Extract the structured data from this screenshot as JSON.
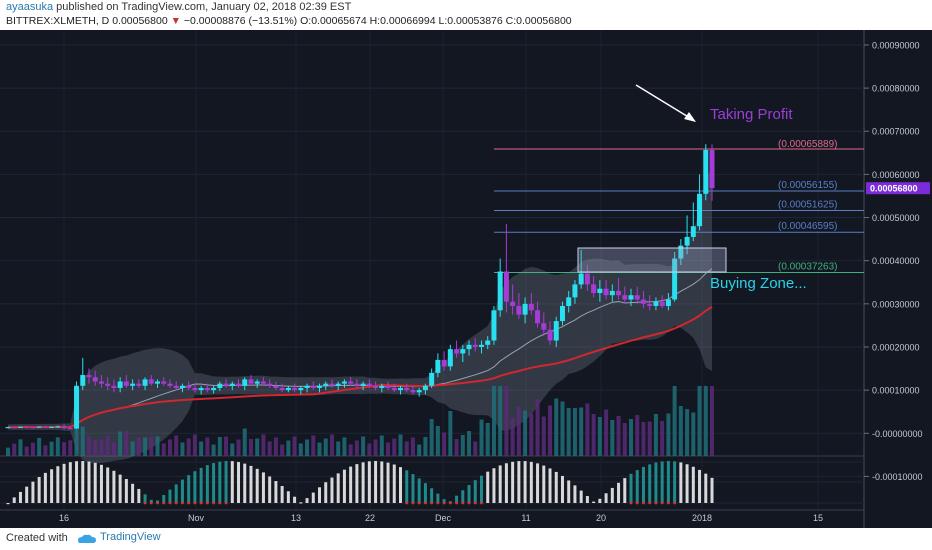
{
  "header": {
    "author": "ayaasuka",
    "published": "published on TradingView.com, January 02, 2018 02:39 EST",
    "symbol": "BITTREX:XLMETH, D",
    "last": "0.00056800",
    "change": "−0.00008876 (−13.51%)",
    "open": "O:0.00065674",
    "high": "H:0.00066994",
    "low": "L:0.00053876",
    "close": "C:0.00056800"
  },
  "footer": {
    "created_with": "Created with",
    "brand": "TradingView"
  },
  "colors": {
    "background": "#131722",
    "bull": "#28e0f0",
    "bear": "#a73bd8",
    "ma_slow": "#d0282e",
    "fib_line": "#5a7fc4",
    "annotation": "#9b3fd8",
    "buying_zone_text": "#27d4e8"
  },
  "chart_data": {
    "type": "candlestick",
    "price_axis_labels": [
      "0.00090000",
      "0.00080000",
      "0.00070000",
      "0.00060000",
      "0.00050000",
      "0.00040000",
      "0.00030000",
      "0.00020000",
      "0.00010000",
      "-0.00000000",
      "-0.00010000"
    ],
    "price_range": [
      -0.00015,
      0.00093
    ],
    "x_labels": [
      "16",
      "Nov",
      "13",
      "22",
      "Dec",
      "11",
      "20",
      "2018",
      "15"
    ],
    "last_price_badge": "0.00056800",
    "fib_levels": [
      {
        "label": "(0.00065889)",
        "value": 0.00065889
      },
      {
        "label": "(0.00056155)",
        "value": 0.00056155
      },
      {
        "label": "(0.00051625)",
        "value": 0.00051625
      },
      {
        "label": "(0.00046595)",
        "value": 0.00046595
      },
      {
        "label": "(0.00037263)",
        "value": 0.00037263
      }
    ],
    "annotations": [
      "Taking Profit",
      "Buying Zone..."
    ],
    "ohlc": [
      [
        1.4e-05,
        1.5e-05,
        1.3e-05,
        1.45e-05
      ],
      [
        1.45e-05,
        1.5e-05,
        1.35e-05,
        1.4e-05
      ],
      [
        1.4e-05,
        1.55e-05,
        1.3e-05,
        1.5e-05
      ],
      [
        1.5e-05,
        1.6e-05,
        1.4e-05,
        1.45e-05
      ],
      [
        1.45e-05,
        1.5e-05,
        1.3e-05,
        1.4e-05
      ],
      [
        1.4e-05,
        1.6e-05,
        1.35e-05,
        1.55e-05
      ],
      [
        1.55e-05,
        1.65e-05,
        1.4e-05,
        1.45e-05
      ],
      [
        1.45e-05,
        1.55e-05,
        1.35e-05,
        1.5e-05
      ],
      [
        1.5e-05,
        1.8e-05,
        1.4e-05,
        1.6e-05
      ],
      [
        1.6e-05,
        2.1e-05,
        9e-06,
        1.2e-05
      ],
      [
        1.2e-05,
        1.7e-05,
        1e-05,
        1.1e-05
      ],
      [
        1.1e-05,
        0.00012,
        1e-05,
        0.00011
      ],
      [
        0.00011,
        0.000175,
        0.0001,
        0.000135
      ],
      [
        0.000135,
        0.00015,
        0.000115,
        0.00013
      ],
      [
        0.00013,
        0.000145,
        0.00011,
        0.00012
      ],
      [
        0.00012,
        0.000135,
        0.000105,
        0.000115
      ],
      [
        0.000115,
        0.00013,
        0.0001,
        0.00011
      ],
      [
        0.00011,
        0.000125,
        9.5e-05,
        0.000105
      ],
      [
        0.000105,
        0.00013,
        9.5e-05,
        0.00012
      ],
      [
        0.00012,
        0.000135,
        0.000105,
        0.00011
      ],
      [
        0.00011,
        0.000125,
        0.0001,
        0.000115
      ],
      [
        0.000115,
        0.000125,
        0.000105,
        0.00011
      ],
      [
        0.00011,
        0.00013,
        0.0001,
        0.000125
      ],
      [
        0.000125,
        0.000135,
        0.00011,
        0.000115
      ],
      [
        0.000115,
        0.000125,
        0.000105,
        0.00012
      ],
      [
        0.00012,
        0.00013,
        0.00011,
        0.000115
      ],
      [
        0.000115,
        0.000125,
        0.000105,
        0.00011
      ],
      [
        0.00011,
        0.00012,
        0.0001,
        0.000105
      ],
      [
        0.000105,
        0.000115,
        9.5e-05,
        0.00011
      ],
      [
        0.00011,
        0.00012,
        0.0001,
        0.000105
      ],
      [
        0.000105,
        0.000115,
        9.5e-05,
        0.0001
      ],
      [
        0.0001,
        0.00011,
        9e-05,
        0.000105
      ],
      [
        0.000105,
        0.000115,
        9.5e-05,
        0.0001
      ],
      [
        0.0001,
        0.00011,
        9.2e-05,
        0.000105
      ],
      [
        0.000105,
        0.00012,
        9.8e-05,
        0.000115
      ],
      [
        0.000115,
        0.000125,
        0.000105,
        0.00011
      ],
      [
        0.00011,
        0.00012,
        0.0001,
        0.000115
      ],
      [
        0.000115,
        0.000125,
        0.000105,
        0.00011
      ],
      [
        0.00011,
        0.00013,
        0.0001,
        0.000125
      ],
      [
        0.000125,
        0.000135,
        0.00011,
        0.000115
      ],
      [
        0.000115,
        0.000125,
        0.000105,
        0.00012
      ],
      [
        0.00012,
        0.00013,
        0.00011,
        0.000115
      ],
      [
        0.000115,
        0.000125,
        0.000105,
        0.00011
      ],
      [
        0.00011,
        0.00012,
        0.0001,
        0.000105
      ],
      [
        0.000105,
        0.000115,
        9.5e-05,
        0.0001
      ],
      [
        0.0001,
        0.00011,
        9.5e-05,
        0.000105
      ],
      [
        0.000105,
        0.000115,
        9.5e-05,
        0.0001
      ],
      [
        0.0001,
        0.00011,
        9e-05,
        0.000105
      ],
      [
        0.000105,
        0.000115,
        9.5e-05,
        0.00011
      ],
      [
        0.00011,
        0.00012,
        0.0001,
        0.000105
      ],
      [
        0.000105,
        0.000115,
        9.5e-05,
        0.00011
      ],
      [
        0.00011,
        0.00012,
        0.0001,
        0.000115
      ],
      [
        0.000115,
        0.000125,
        0.000105,
        0.00011
      ],
      [
        0.00011,
        0.00012,
        0.0001,
        0.000115
      ],
      [
        0.000115,
        0.000125,
        0.000105,
        0.00012
      ],
      [
        0.00012,
        0.00013,
        0.00011,
        0.000115
      ],
      [
        0.000115,
        0.000125,
        0.000105,
        0.00011
      ],
      [
        0.00011,
        0.00012,
        0.0001,
        0.000115
      ],
      [
        0.000115,
        0.000125,
        0.000105,
        0.00011
      ],
      [
        0.00011,
        0.00012,
        0.0001,
        0.000105
      ],
      [
        0.000105,
        0.000115,
        9.5e-05,
        0.00011
      ],
      [
        0.00011,
        0.00012,
        0.0001,
        0.000105
      ],
      [
        0.000105,
        0.000115,
        9.5e-05,
        0.0001
      ],
      [
        0.0001,
        0.00011,
        9e-05,
        0.000105
      ],
      [
        0.000105,
        0.000115,
        9.5e-05,
        0.0001
      ],
      [
        0.0001,
        0.00011,
        9e-05,
        9.5e-05
      ],
      [
        9.5e-05,
        0.000105,
        8.5e-05,
        0.0001
      ],
      [
        0.0001,
        0.000115,
        9e-05,
        0.00011
      ],
      [
        0.00011,
        0.00015,
        0.000105,
        0.00014
      ],
      [
        0.00014,
        0.000185,
        0.00013,
        0.00017
      ],
      [
        0.00017,
        0.00019,
        0.000145,
        0.000155
      ],
      [
        0.000155,
        0.000205,
        0.000145,
        0.000195
      ],
      [
        0.000195,
        0.000215,
        0.000175,
        0.000185
      ],
      [
        0.000185,
        0.000205,
        0.000165,
        0.000195
      ],
      [
        0.000195,
        0.000215,
        0.00018,
        0.000205
      ],
      [
        0.000205,
        0.00022,
        0.00019,
        0.0002
      ],
      [
        0.0002,
        0.000215,
        0.000185,
        0.000205
      ],
      [
        0.000205,
        0.000225,
        0.000195,
        0.000215
      ],
      [
        0.000215,
        0.000295,
        0.000205,
        0.000285
      ],
      [
        0.000285,
        0.000405,
        0.00027,
        0.000375
      ],
      [
        0.000375,
        0.000485,
        0.00028,
        0.000305
      ],
      [
        0.000305,
        0.000345,
        0.000275,
        0.000295
      ],
      [
        0.000295,
        0.000325,
        0.000265,
        0.000275
      ],
      [
        0.000275,
        0.000315,
        0.000255,
        0.0003
      ],
      [
        0.0003,
        0.000325,
        0.000275,
        0.000285
      ],
      [
        0.000285,
        0.000305,
        0.000245,
        0.000255
      ],
      [
        0.000255,
        0.00028,
        0.000225,
        0.00024
      ],
      [
        0.00024,
        0.00026,
        0.000205,
        0.000215
      ],
      [
        0.000215,
        0.00027,
        0.0002,
        0.00026
      ],
      [
        0.00026,
        0.000305,
        0.00025,
        0.000295
      ],
      [
        0.000295,
        0.00033,
        0.00028,
        0.000315
      ],
      [
        0.000315,
        0.000355,
        0.0003,
        0.000345
      ],
      [
        0.000345,
        0.000425,
        0.000335,
        0.00037
      ],
      [
        0.00037,
        0.00039,
        0.00033,
        0.000345
      ],
      [
        0.000345,
        0.000365,
        0.000315,
        0.000325
      ],
      [
        0.000325,
        0.000355,
        0.000305,
        0.000335
      ],
      [
        0.000335,
        0.000355,
        0.00031,
        0.00032
      ],
      [
        0.00032,
        0.000345,
        0.000305,
        0.00033
      ],
      [
        0.00033,
        0.00036,
        0.00031,
        0.00032
      ],
      [
        0.00032,
        0.00034,
        0.0003,
        0.00031
      ],
      [
        0.00031,
        0.000335,
        0.000295,
        0.00032
      ],
      [
        0.00032,
        0.00034,
        0.0003,
        0.00031
      ],
      [
        0.00031,
        0.00033,
        0.00029,
        0.0003
      ],
      [
        0.0003,
        0.00032,
        0.000285,
        0.000295
      ],
      [
        0.000295,
        0.000315,
        0.000285,
        0.000305
      ],
      [
        0.000305,
        0.00032,
        0.00029,
        0.000295
      ],
      [
        0.000295,
        0.000325,
        0.000285,
        0.00031
      ],
      [
        0.00031,
        0.00042,
        0.000305,
        0.000405
      ],
      [
        0.000405,
        0.00045,
        0.00039,
        0.000435
      ],
      [
        0.000435,
        0.000505,
        0.000415,
        0.000455
      ],
      [
        0.000455,
        0.000535,
        0.000445,
        0.00048
      ],
      [
        0.00048,
        0.0006,
        0.00047,
        0.000555
      ],
      [
        0.000555,
        0.00067,
        0.00054,
        0.0006567
      ],
      [
        0.0006567,
        0.0006699,
        0.0005388,
        0.000568
      ]
    ]
  }
}
